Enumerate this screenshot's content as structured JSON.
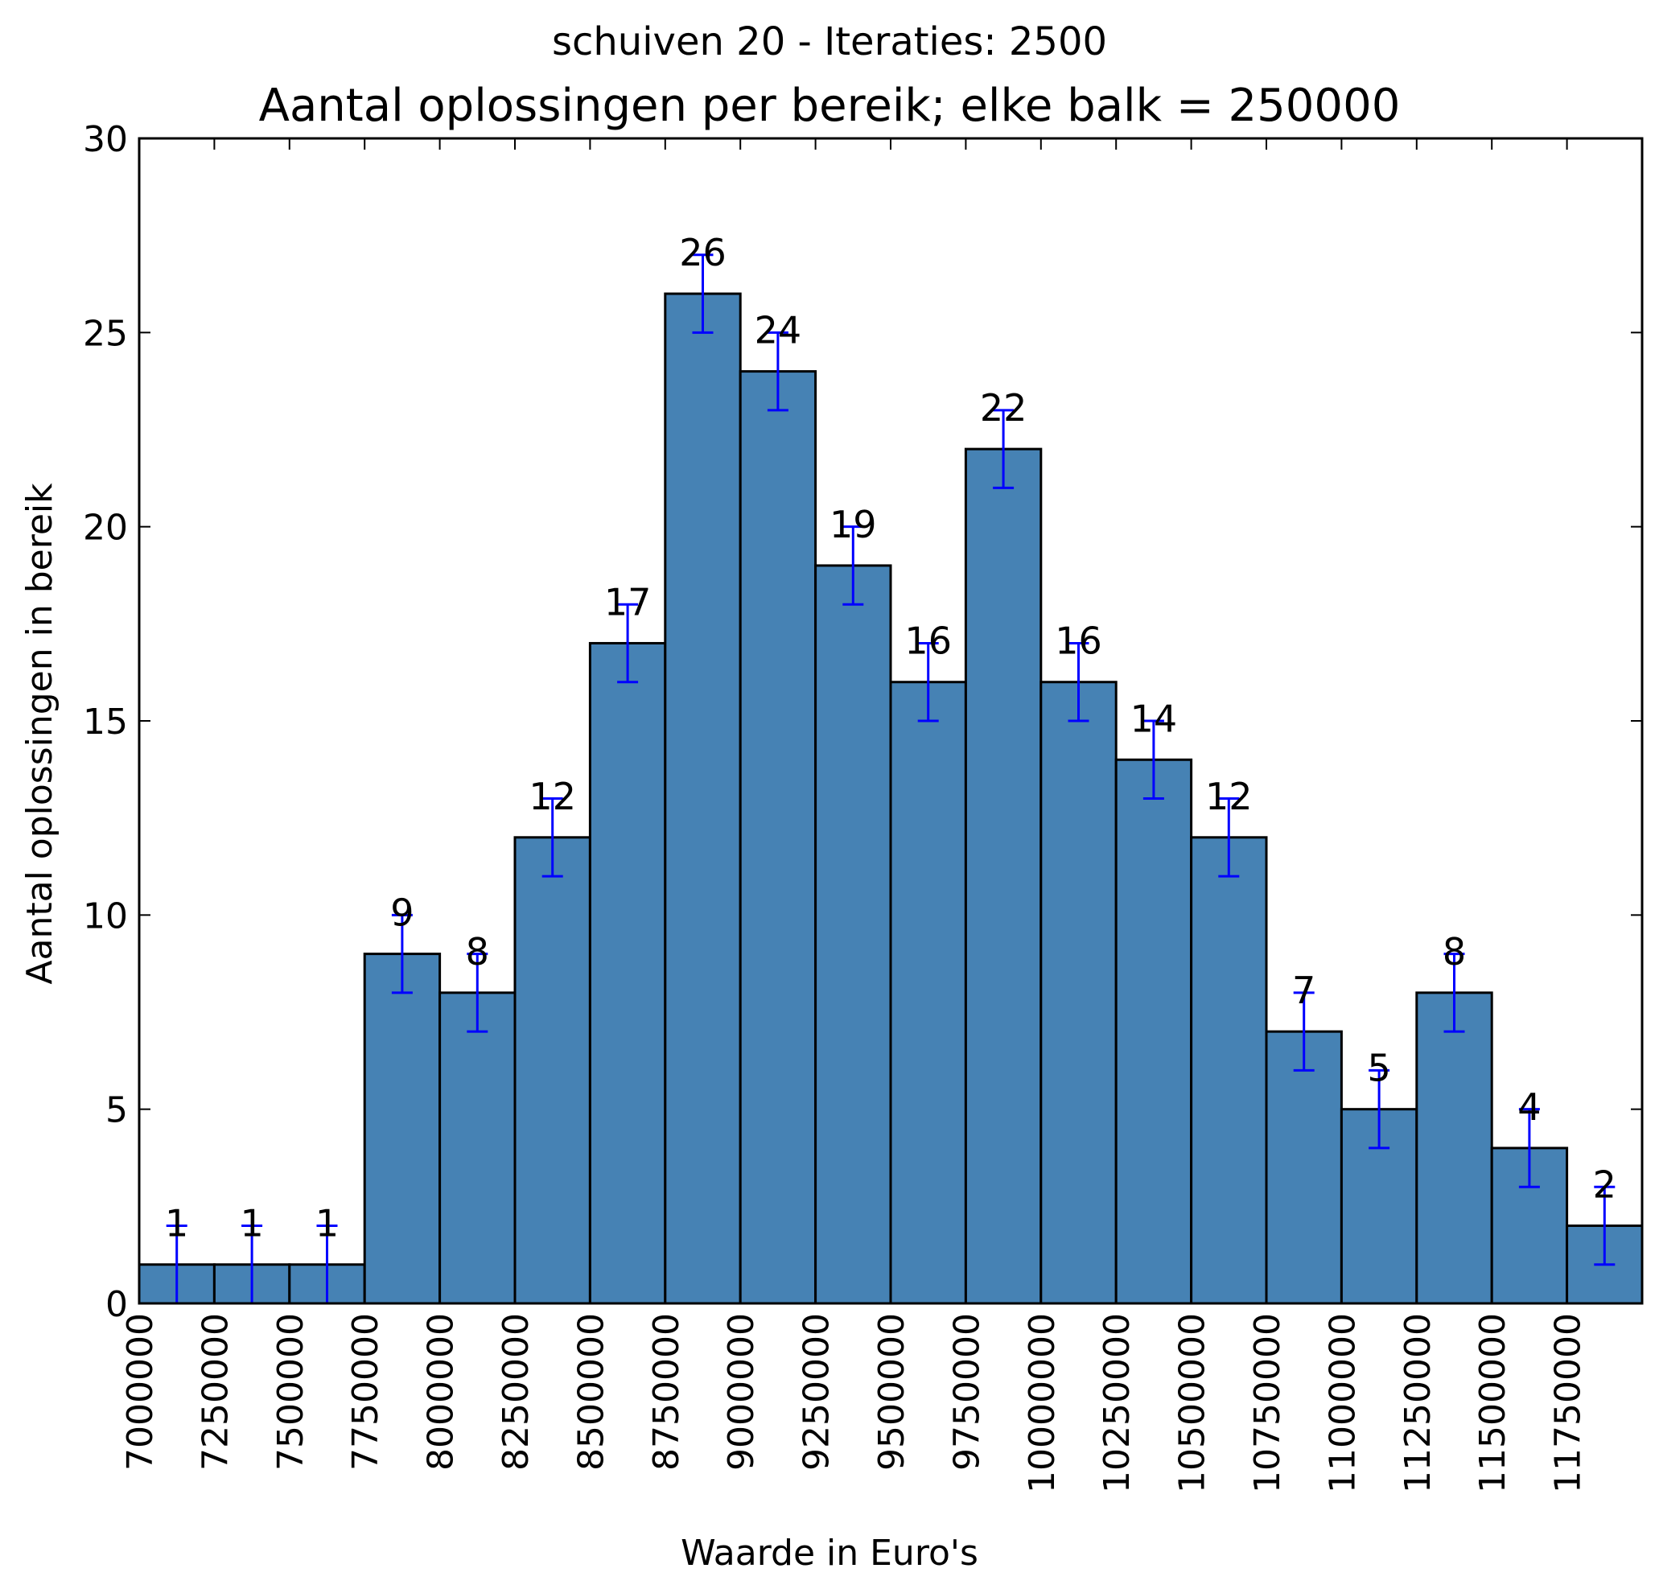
{
  "chart_data": {
    "type": "bar",
    "suptitle": "schuiven 20 - Iteraties: 2500",
    "title": "Aantal oplossingen per bereik; elke balk = 250000",
    "xlabel": "Waarde in Euro's",
    "ylabel": "Aantal oplossingen in bereik",
    "xlim": [
      7000000,
      12000000
    ],
    "ylim": [
      0,
      30
    ],
    "yticks": [
      0,
      5,
      10,
      15,
      20,
      25,
      30
    ],
    "xticks": [
      7000000,
      7250000,
      7500000,
      7750000,
      8000000,
      8250000,
      8500000,
      8750000,
      9000000,
      9250000,
      9500000,
      9750000,
      10000000,
      10250000,
      10500000,
      10750000,
      11000000,
      11250000,
      11500000,
      11750000
    ],
    "bin_width": 250000,
    "bins_start": [
      7000000,
      7250000,
      7500000,
      7750000,
      8000000,
      8250000,
      8500000,
      8750000,
      9000000,
      9250000,
      9500000,
      9750000,
      10000000,
      10250000,
      10500000,
      10750000,
      11000000,
      11250000,
      11500000,
      11750000
    ],
    "values": [
      1,
      1,
      1,
      9,
      8,
      12,
      17,
      26,
      24,
      19,
      16,
      22,
      16,
      14,
      12,
      7,
      5,
      8,
      4,
      2
    ],
    "error": 1,
    "grid": false,
    "colors": {
      "bar": "#4682b4",
      "edge": "#000000",
      "errorbar": "#0000ff"
    }
  }
}
